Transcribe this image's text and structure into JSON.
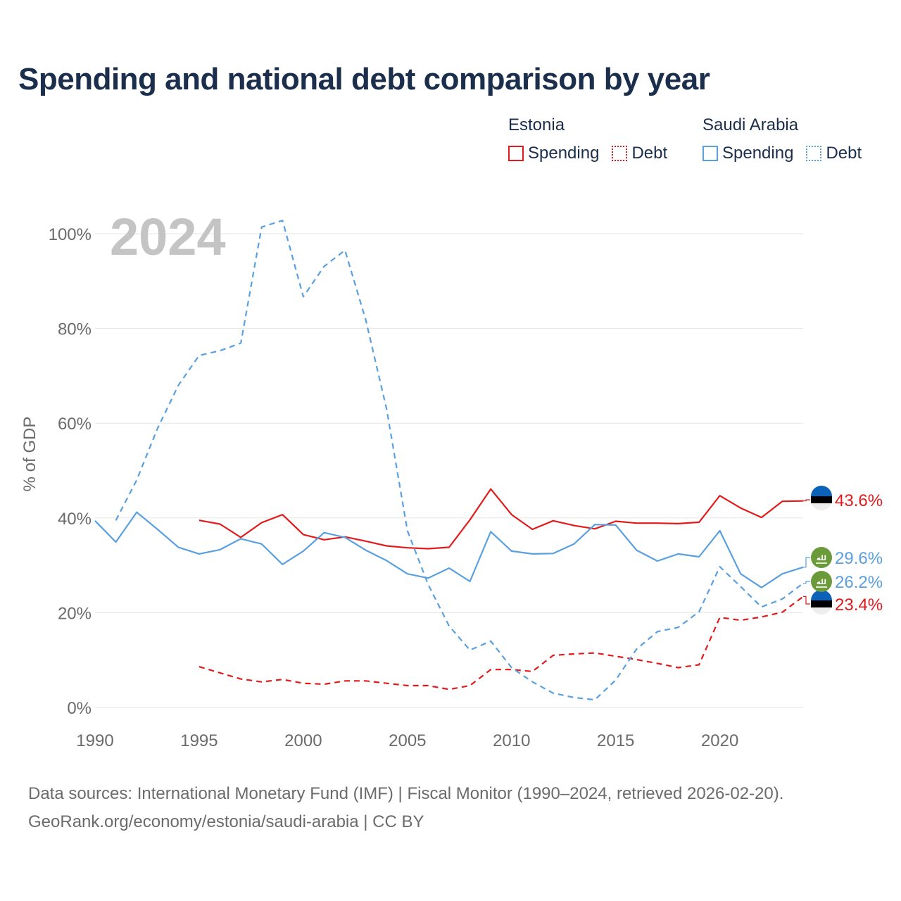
{
  "title": "Spending and national debt comparison by year",
  "legend": {
    "groups": [
      {
        "name": "Estonia",
        "items": [
          {
            "label": "Spending",
            "style": "solid",
            "color": "#e31a1c"
          },
          {
            "label": "Debt",
            "style": "dotted",
            "color": "#e31a1c"
          }
        ]
      },
      {
        "name": "Saudi Arabia",
        "items": [
          {
            "label": "Spending",
            "style": "solid",
            "color": "#5aa0e0"
          },
          {
            "label": "Debt",
            "style": "dotted",
            "color": "#5aa0e0"
          }
        ]
      }
    ]
  },
  "footer": {
    "sources": "Data sources: International Monetary Fund (IMF) | Fiscal Monitor (1990–2024, retrieved 2026-02-20).",
    "credit": "GeoRank.org/economy/estonia/saudi-arabia | CC BY"
  },
  "colors": {
    "estonia": "#e31a1c",
    "saudi": "#5aa0e0",
    "grid": "#e6e6e6",
    "axis_text": "#6b6b6b",
    "year_watermark": "#c4c4c4",
    "saudi_badge": "#6a9a3a",
    "estonia_flag_blue": "#0b62b8"
  },
  "chart_data": {
    "type": "line",
    "year_label": "2024",
    "ylabel": "% of GDP",
    "xlim": [
      1990,
      2024
    ],
    "ylim": [
      0,
      100
    ],
    "x_ticks": [
      1990,
      1995,
      2000,
      2005,
      2010,
      2015,
      2020
    ],
    "y_ticks": [
      0,
      20,
      40,
      60,
      80,
      100
    ],
    "y_tick_labels": [
      "0%",
      "20%",
      "40%",
      "60%",
      "80%",
      "100%"
    ],
    "series": [
      {
        "name": "Estonia Spending",
        "country": "estonia",
        "metric": "spending",
        "dashed": false,
        "x": [
          1995,
          1996,
          1997,
          1998,
          1999,
          2000,
          2001,
          2002,
          2003,
          2004,
          2005,
          2006,
          2007,
          2008,
          2009,
          2010,
          2011,
          2012,
          2013,
          2014,
          2015,
          2016,
          2017,
          2018,
          2019,
          2020,
          2021,
          2022,
          2023,
          2024
        ],
        "y": [
          39.5,
          38.7,
          35.9,
          39.0,
          40.7,
          36.5,
          35.4,
          36.0,
          35.1,
          34.1,
          33.7,
          33.5,
          33.8,
          39.6,
          46.1,
          40.7,
          37.6,
          39.4,
          38.4,
          37.7,
          39.3,
          38.9,
          38.9,
          38.8,
          39.1,
          44.7,
          42.1,
          40.1,
          43.5,
          43.6
        ],
        "end_label": "43.6%"
      },
      {
        "name": "Estonia Debt",
        "country": "estonia",
        "metric": "debt",
        "dashed": true,
        "x": [
          1995,
          1996,
          1997,
          1998,
          1999,
          2000,
          2001,
          2002,
          2003,
          2004,
          2005,
          2006,
          2007,
          2008,
          2009,
          2010,
          2011,
          2012,
          2013,
          2014,
          2015,
          2016,
          2017,
          2018,
          2019,
          2020,
          2021,
          2022,
          2023,
          2024
        ],
        "y": [
          8.6,
          7.3,
          6.0,
          5.4,
          5.9,
          5.1,
          4.9,
          5.6,
          5.6,
          5.1,
          4.6,
          4.6,
          3.8,
          4.6,
          8.0,
          8.0,
          7.6,
          11.0,
          11.3,
          11.5,
          10.8,
          10.1,
          9.3,
          8.4,
          9.0,
          19.0,
          18.4,
          19.1,
          20.1,
          23.4
        ],
        "end_label": "23.4%"
      },
      {
        "name": "Saudi Arabia Spending",
        "country": "saudi",
        "metric": "spending",
        "dashed": false,
        "x": [
          1990,
          1991,
          1992,
          1993,
          1994,
          1995,
          1996,
          1997,
          1998,
          1999,
          2000,
          2001,
          2002,
          2003,
          2004,
          2005,
          2006,
          2007,
          2008,
          2009,
          2010,
          2011,
          2012,
          2013,
          2014,
          2015,
          2016,
          2017,
          2018,
          2019,
          2020,
          2021,
          2022,
          2023,
          2024
        ],
        "y": [
          39.4,
          34.9,
          41.2,
          37.6,
          33.8,
          32.4,
          33.3,
          35.6,
          34.5,
          30.2,
          33.0,
          36.9,
          35.9,
          33.2,
          31.0,
          28.2,
          27.3,
          29.4,
          26.6,
          37.1,
          33.0,
          32.4,
          32.5,
          34.5,
          38.6,
          38.5,
          33.2,
          30.9,
          32.4,
          31.8,
          37.3,
          28.2,
          25.3,
          28.2,
          29.6
        ],
        "end_label": "29.6%"
      },
      {
        "name": "Saudi Arabia Debt",
        "country": "saudi",
        "metric": "debt",
        "dashed": true,
        "x": [
          1991,
          1992,
          1993,
          1994,
          1995,
          1996,
          1997,
          1998,
          1999,
          2000,
          2001,
          2002,
          2003,
          2004,
          2005,
          2006,
          2007,
          2008,
          2009,
          2010,
          2011,
          2012,
          2013,
          2014,
          2015,
          2016,
          2017,
          2018,
          2019,
          2020,
          2021,
          2022,
          2023,
          2024
        ],
        "y": [
          39.5,
          48.0,
          58.9,
          68.0,
          74.3,
          75.3,
          76.9,
          101.4,
          102.8,
          86.7,
          93.1,
          96.5,
          81.8,
          63.0,
          37.3,
          25.9,
          17.2,
          12.1,
          14.0,
          8.4,
          5.4,
          3.0,
          2.1,
          1.6,
          5.8,
          12.3,
          16.0,
          16.9,
          20.2,
          29.7,
          25.5,
          21.2,
          22.9,
          26.2
        ],
        "end_label": "26.2%"
      }
    ]
  }
}
